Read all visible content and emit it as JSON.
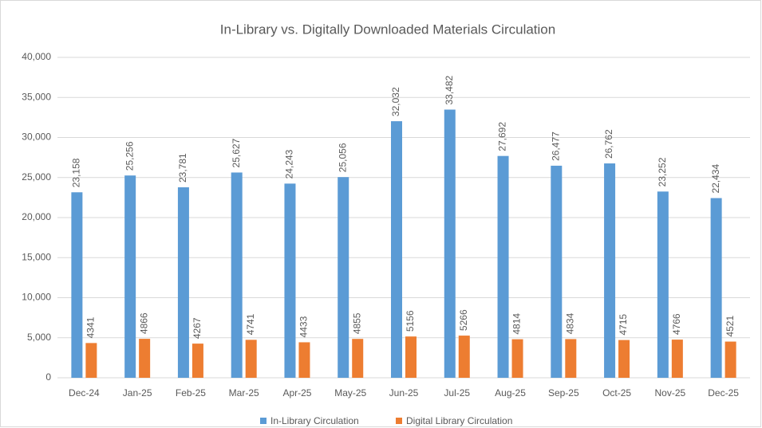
{
  "chart_data": {
    "type": "bar",
    "title": "In-Library vs. Digitally Downloaded Materials Circulation",
    "categories": [
      "Dec-24",
      "Jan-25",
      "Feb-25",
      "Mar-25",
      "Apr-25",
      "May-25",
      "Jun-25",
      "Jul-25",
      "Aug-25",
      "Sep-25",
      "Oct-25",
      "Nov-25",
      "Dec-25"
    ],
    "series": [
      {
        "name": "In-Library Circulation",
        "color": "#5b9bd5",
        "values": [
          23158,
          25256,
          23781,
          25627,
          24243,
          25056,
          32032,
          33482,
          27692,
          26477,
          26762,
          23252,
          22434
        ],
        "value_labels": [
          "23,158",
          "25,256",
          "23,781",
          "25,627",
          "24,243",
          "25,056",
          "32,032",
          "33,482",
          "27,692",
          "26,477",
          "26,762",
          "23,252",
          "22,434"
        ]
      },
      {
        "name": "Digital Library Circulation",
        "color": "#ed7d31",
        "values": [
          4341,
          4866,
          4267,
          4741,
          4433,
          4855,
          5156,
          5266,
          4814,
          4834,
          4715,
          4766,
          4521
        ]
      }
    ],
    "ylim": [
      0,
      40000
    ],
    "yticks": [
      0,
      {
        "value": 5000,
        "label": "5,000"
      },
      {
        "value": 10000,
        "label": "10,000"
      },
      {
        "value": 15000,
        "label": "15,000"
      },
      {
        "value": 20000,
        "label": "20,000"
      },
      {
        "value": 25000,
        "label": "25,000"
      },
      {
        "value": 30000,
        "label": "30,000"
      },
      {
        "value": 35000,
        "label": "35,000"
      },
      {
        "value": 40000,
        "label": "40,000"
      }
    ],
    "grid": true,
    "legend": "bottom"
  }
}
